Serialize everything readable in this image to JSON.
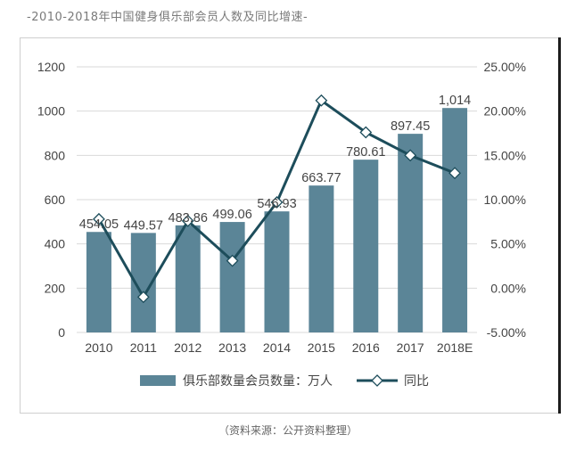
{
  "page_title": "-2010-2018年中国健身俱乐部会员人数及同比增速-",
  "source_note": "（资料来源：公开资料整理）",
  "colors": {
    "bar": "#5b8597",
    "line": "#1d4d5b",
    "marker_fill": "#ffffff",
    "grid": "#d9d9d9"
  },
  "chart_data": {
    "type": "bar",
    "title": "",
    "categories": [
      "2010",
      "2011",
      "2012",
      "2013",
      "2014",
      "2015",
      "2016",
      "2017",
      "2018E"
    ],
    "series": [
      {
        "name": "俱乐部数量会员数量：万人",
        "type": "bar",
        "axis": "left",
        "values": [
          454.05,
          449.57,
          483.86,
          499.06,
          546.93,
          663.77,
          780.61,
          897.45,
          1014
        ],
        "labels": [
          "454.05",
          "449.57",
          "483.86",
          "499.06",
          "546.93",
          "663.77",
          "780.61",
          "897.45",
          "1,014"
        ]
      },
      {
        "name": "同比",
        "type": "line",
        "axis": "right",
        "values": [
          7.8,
          -1.0,
          7.6,
          3.1,
          9.7,
          21.2,
          17.6,
          15.0,
          13.0
        ]
      }
    ],
    "y_left": {
      "min": 0,
      "max": 1200,
      "ticks": [
        "0",
        "200",
        "400",
        "600",
        "800",
        "1000",
        "1200"
      ]
    },
    "y_right": {
      "min": -5,
      "max": 25,
      "ticks": [
        "-5.00%",
        "0.00%",
        "5.00%",
        "10.00%",
        "15.00%",
        "20.00%",
        "25.00%"
      ]
    },
    "grid": true,
    "legend_position": "bottom"
  }
}
